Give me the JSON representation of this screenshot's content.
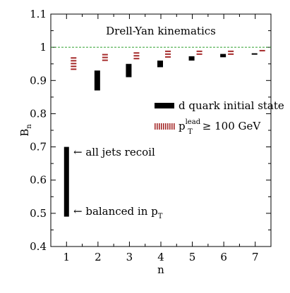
{
  "chart_data": {
    "type": "bar",
    "title": "Drell-Yan kinematics",
    "xlabel": "n",
    "ylabel": "B",
    "ylabel_sub": "n",
    "xlim": [
      0.5,
      7.5
    ],
    "ylim": [
      0.4,
      1.1
    ],
    "xticks": [
      1,
      2,
      3,
      4,
      5,
      6,
      7
    ],
    "yticks": [
      0.4,
      0.5,
      0.6,
      0.7,
      0.8,
      0.9,
      1.0,
      1.1
    ],
    "ytick_labels": [
      "0.4",
      "0.5",
      "0.6",
      "0.7",
      "0.8",
      "0.9",
      "1",
      "1.1"
    ],
    "reference_line": {
      "y": 1.0,
      "color": "#2ca02c",
      "style": "dashed"
    },
    "series": [
      {
        "name": "d quark initial state",
        "color": "#000000",
        "style": "solid",
        "ranges": [
          {
            "n": 1,
            "low": 0.49,
            "high": 0.7
          },
          {
            "n": 2,
            "low": 0.87,
            "high": 0.93
          },
          {
            "n": 3,
            "low": 0.91,
            "high": 0.95
          },
          {
            "n": 4,
            "low": 0.94,
            "high": 0.96
          },
          {
            "n": 5,
            "low": 0.96,
            "high": 0.973
          },
          {
            "n": 6,
            "low": 0.97,
            "high": 0.98
          },
          {
            "n": 7,
            "low": 0.978,
            "high": 0.982
          }
        ]
      },
      {
        "name_main": "p",
        "name_sub": "T",
        "name_sup": "lead",
        "name_rest": "≥ 100 GeV",
        "color": "#a52a2a",
        "style": "dashed",
        "ranges": [
          {
            "n": 1,
            "low": 0.93,
            "high": 0.97
          },
          {
            "n": 2,
            "low": 0.955,
            "high": 0.98
          },
          {
            "n": 3,
            "low": 0.962,
            "high": 0.985
          },
          {
            "n": 4,
            "low": 0.968,
            "high": 0.99
          },
          {
            "n": 5,
            "low": 0.975,
            "high": 0.99
          },
          {
            "n": 6,
            "low": 0.98,
            "high": 0.99
          },
          {
            "n": 7,
            "low": 0.985,
            "high": 0.992
          }
        ]
      }
    ],
    "annotations": {
      "top": {
        "text": "← all jets recoil",
        "y": 0.7
      },
      "bottom": {
        "main": "← balanced in p",
        "sub": "T",
        "y": 0.5
      }
    }
  }
}
